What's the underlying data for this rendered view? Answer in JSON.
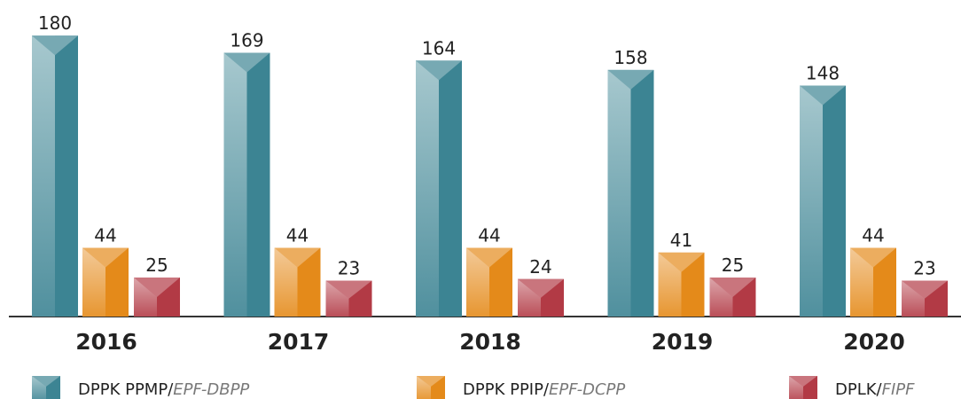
{
  "chart_data": {
    "type": "bar",
    "categories": [
      "2016",
      "2017",
      "2018",
      "2019",
      "2020"
    ],
    "series": [
      {
        "name": "DPPK PPMP/EPF-DBPP",
        "color": "#3c8493",
        "values": [
          180,
          169,
          164,
          158,
          148
        ]
      },
      {
        "name": "DPPK PPIP/EPF-DCPP",
        "color": "#e48a1a",
        "values": [
          44,
          44,
          44,
          41,
          44
        ]
      },
      {
        "name": "DPLK/FIPF",
        "color": "#b23a45",
        "values": [
          25,
          23,
          24,
          25,
          23
        ]
      }
    ]
  }
}
